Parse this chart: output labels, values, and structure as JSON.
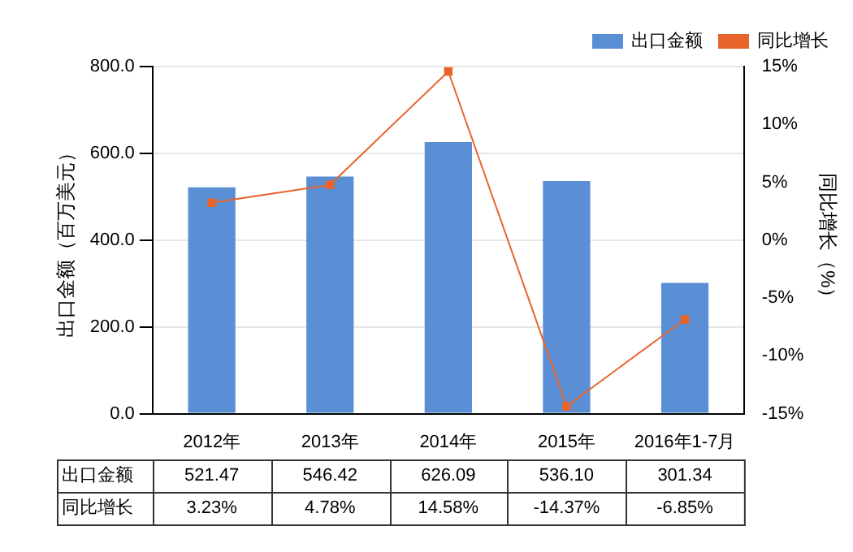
{
  "chart_data": {
    "type": "bar",
    "categories": [
      "2012年",
      "2013年",
      "2014年",
      "2015年",
      "2016年1-7月"
    ],
    "series": [
      {
        "name": "出口金额",
        "color": "#5a8fd6",
        "values": [
          521.47,
          546.42,
          626.09,
          536.1,
          301.34
        ],
        "value_labels": [
          "521.47",
          "546.42",
          "626.09",
          "536.10",
          "301.34"
        ]
      },
      {
        "name": "同比增长",
        "type": "line",
        "axis": "y2",
        "color": "#e8642b",
        "marker": "square",
        "values": [
          3.23,
          4.78,
          14.58,
          -14.37,
          -6.85
        ],
        "value_labels": [
          "3.23%",
          "4.78%",
          "14.58%",
          "-14.37%",
          "-6.85%"
        ]
      }
    ],
    "ylabel": "出口金额（百万美元）",
    "y2label": "同比增长（%）",
    "ylim": [
      0,
      800
    ],
    "yticks": [
      {
        "value": 0,
        "label": "0.0"
      },
      {
        "value": 200,
        "label": "200.0"
      },
      {
        "value": 400,
        "label": "400.0"
      },
      {
        "value": 600,
        "label": "600.0"
      },
      {
        "value": 800,
        "label": "800.0"
      }
    ],
    "y2lim": [
      -15,
      15
    ],
    "y2ticks": [
      {
        "value": -15,
        "label": "-15%"
      },
      {
        "value": -10,
        "label": "-10%"
      },
      {
        "value": -5,
        "label": "-5%"
      },
      {
        "value": 0,
        "label": "0%"
      },
      {
        "value": 5,
        "label": "5%"
      },
      {
        "value": 10,
        "label": "10%"
      },
      {
        "value": 15,
        "label": "15%"
      }
    ],
    "grid": "y",
    "legend": "top right"
  }
}
